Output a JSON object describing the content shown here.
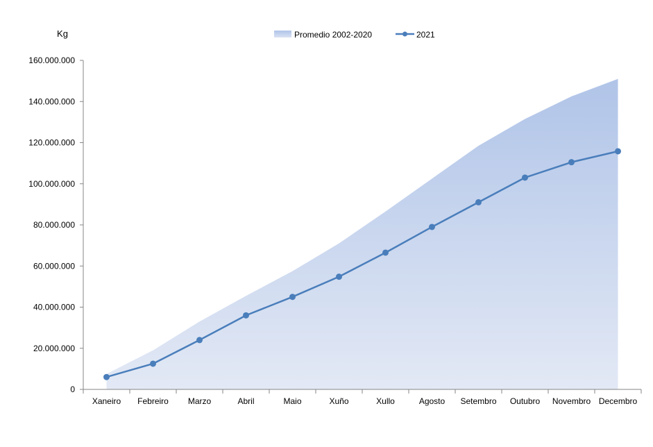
{
  "chart_data": {
    "type": "area",
    "ylabel": "Kg",
    "categories": [
      "Xaneiro",
      "Febreiro",
      "Marzo",
      "Abril",
      "Maio",
      "Xuño",
      "Xullo",
      "Agosto",
      "Setembro",
      "Outubro",
      "Novembro",
      "Decembro"
    ],
    "y_ticks": [
      "0",
      "20.000.000",
      "40.000.000",
      "60.000.000",
      "80.000.000",
      "100.000.000",
      "120.000.000",
      "140.000.000",
      "160.000.000"
    ],
    "ylim": [
      0,
      160000000
    ],
    "grid": false,
    "legend_position": "top-center",
    "series": [
      {
        "name": "Promedio 2002-2020",
        "type": "area",
        "color": "#b4c7e7",
        "values": [
          7500000,
          19000000,
          33000000,
          45500000,
          57500000,
          71000000,
          86500000,
          102500000,
          118500000,
          131500000,
          142500000,
          151000000
        ]
      },
      {
        "name": "2021",
        "type": "line",
        "color": "#4a7ebb",
        "values": [
          6000000,
          12500000,
          24000000,
          36000000,
          45000000,
          54800000,
          66500000,
          79000000,
          91000000,
          103000000,
          110500000,
          115800000
        ]
      }
    ]
  }
}
